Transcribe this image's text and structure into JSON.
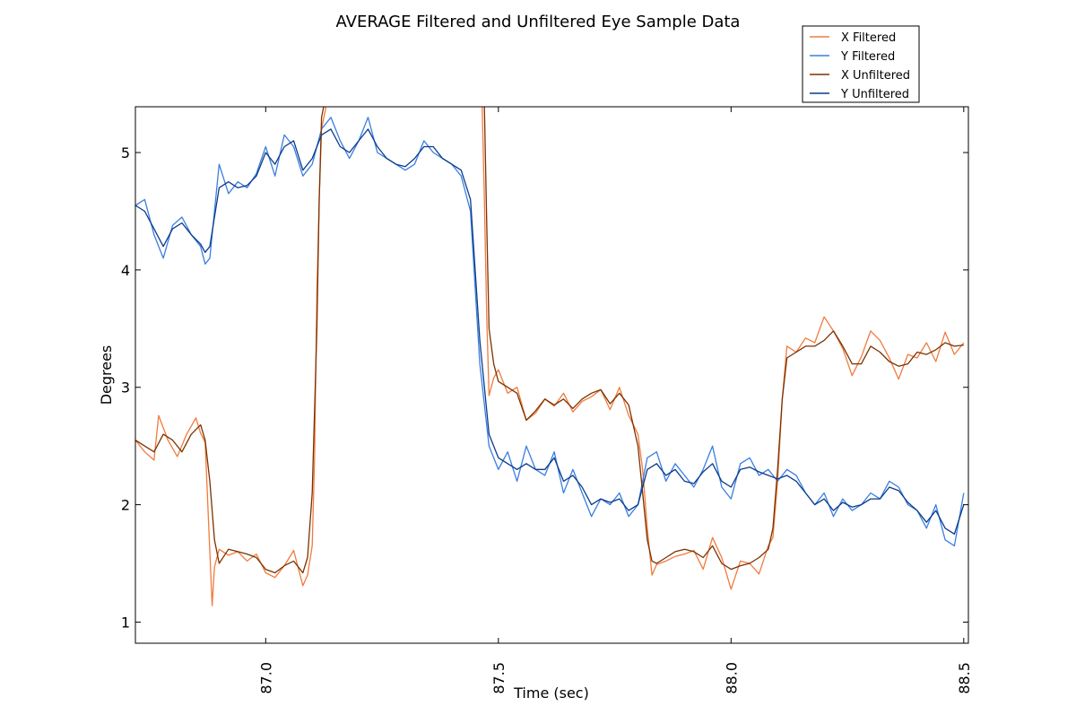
{
  "chart_data": {
    "type": "line",
    "title": "AVERAGE Filtered and Unfiltered Eye Sample Data",
    "xlabel": "Time (sec)",
    "ylabel": "Degrees",
    "xlim": [
      86.72,
      88.51
    ],
    "ylim": [
      0.82,
      5.39
    ],
    "xticks": [
      "87.0",
      "87.5",
      "88.0",
      "88.5"
    ],
    "xtick_values": [
      87.0,
      87.5,
      88.0,
      88.5
    ],
    "yticks": [
      "1",
      "2",
      "3",
      "4",
      "5"
    ],
    "ytick_values": [
      1,
      2,
      3,
      4,
      5
    ],
    "grid": false,
    "legend_position": "top-right",
    "series": [
      {
        "name": "X Filtered",
        "color": "#f07b3f",
        "x": [
          86.72,
          86.74,
          86.76,
          86.77,
          86.79,
          86.81,
          86.83,
          86.85,
          86.86,
          86.87,
          86.88,
          86.885,
          86.89,
          86.9,
          86.92,
          86.94,
          86.96,
          86.98,
          87.0,
          87.02,
          87.04,
          87.06,
          87.08,
          87.09,
          87.1,
          87.105,
          87.11,
          87.115,
          87.12,
          87.13
        ],
        "values": [
          2.55,
          2.45,
          2.38,
          2.76,
          2.55,
          2.41,
          2.6,
          2.74,
          2.61,
          2.53,
          1.6,
          1.14,
          1.47,
          1.62,
          1.57,
          1.6,
          1.52,
          1.58,
          1.42,
          1.38,
          1.48,
          1.61,
          1.31,
          1.4,
          1.65,
          2.4,
          3.8,
          4.6,
          5.2,
          5.4
        ]
      },
      {
        "name": "X Filtered",
        "color": "#f07b3f",
        "x": [
          87.465,
          87.47,
          87.475,
          87.48,
          87.49,
          87.5,
          87.52,
          87.54,
          87.56,
          87.58,
          87.6,
          87.62,
          87.64,
          87.66,
          87.68,
          87.7,
          87.72,
          87.74,
          87.76,
          87.78,
          87.8,
          87.81,
          87.82,
          87.83,
          87.84,
          87.86,
          87.88,
          87.9,
          87.92,
          87.94,
          87.96,
          87.98,
          88.0,
          88.02,
          88.04,
          88.06,
          88.08,
          88.09,
          88.1,
          88.11,
          88.12,
          88.14,
          88.16,
          88.18,
          88.2,
          88.22,
          88.24,
          88.26,
          88.28,
          88.3,
          88.32,
          88.34,
          88.36,
          88.38,
          88.4,
          88.42,
          88.44,
          88.46,
          88.48,
          88.5
        ],
        "values": [
          5.4,
          4.6,
          3.6,
          2.93,
          3.08,
          3.15,
          2.95,
          3.0,
          2.72,
          2.78,
          2.9,
          2.84,
          2.95,
          2.79,
          2.88,
          2.92,
          2.98,
          2.81,
          3.0,
          2.76,
          2.6,
          2.3,
          1.8,
          1.4,
          1.49,
          1.52,
          1.56,
          1.58,
          1.61,
          1.45,
          1.72,
          1.55,
          1.28,
          1.52,
          1.5,
          1.41,
          1.65,
          1.72,
          2.2,
          2.9,
          3.35,
          3.3,
          3.42,
          3.38,
          3.6,
          3.48,
          3.33,
          3.1,
          3.26,
          3.48,
          3.4,
          3.25,
          3.07,
          3.28,
          3.25,
          3.38,
          3.22,
          3.47,
          3.28,
          3.38
        ]
      },
      {
        "name": "Y Filtered",
        "color": "#3b7fe0",
        "x": [
          86.72,
          86.74,
          86.76,
          86.78,
          86.8,
          86.82,
          86.84,
          86.86,
          86.87,
          86.88,
          86.9,
          86.92,
          86.94,
          86.96,
          86.98,
          87.0,
          87.02,
          87.04,
          87.06,
          87.08,
          87.1,
          87.12,
          87.14,
          87.16,
          87.18,
          87.2,
          87.22,
          87.24,
          87.26,
          87.28,
          87.3,
          87.32,
          87.34,
          87.36,
          87.38,
          87.4,
          87.42,
          87.44,
          87.46,
          87.48,
          87.5,
          87.52,
          87.54,
          87.56,
          87.58,
          87.6,
          87.62,
          87.64,
          87.66,
          87.68,
          87.7,
          87.72,
          87.74,
          87.76,
          87.78,
          87.8,
          87.82,
          87.84,
          87.86,
          87.88,
          87.9,
          87.92,
          87.94,
          87.96,
          87.98,
          88.0,
          88.02,
          88.04,
          88.06,
          88.08,
          88.1,
          88.12,
          88.14,
          88.16,
          88.18,
          88.2,
          88.22,
          88.24,
          88.26,
          88.28,
          88.3,
          88.32,
          88.34,
          88.36,
          88.38,
          88.4,
          88.42,
          88.44,
          88.46,
          88.48,
          88.5
        ],
        "values": [
          4.55,
          4.6,
          4.3,
          4.1,
          4.38,
          4.45,
          4.3,
          4.2,
          4.05,
          4.1,
          4.9,
          4.65,
          4.75,
          4.7,
          4.82,
          5.05,
          4.8,
          5.15,
          5.05,
          4.8,
          4.9,
          5.2,
          5.3,
          5.1,
          4.95,
          5.1,
          5.3,
          5.0,
          4.95,
          4.9,
          4.85,
          4.9,
          5.1,
          5.0,
          4.95,
          4.9,
          4.8,
          4.5,
          3.2,
          2.5,
          2.3,
          2.45,
          2.2,
          2.5,
          2.3,
          2.25,
          2.45,
          2.1,
          2.3,
          2.1,
          1.9,
          2.05,
          2.0,
          2.1,
          1.9,
          2.0,
          2.4,
          2.45,
          2.2,
          2.35,
          2.25,
          2.15,
          2.3,
          2.5,
          2.15,
          2.05,
          2.35,
          2.4,
          2.25,
          2.3,
          2.2,
          2.3,
          2.25,
          2.1,
          2.0,
          2.1,
          1.9,
          2.05,
          1.95,
          2.0,
          2.1,
          2.05,
          2.2,
          2.15,
          2.0,
          1.95,
          1.8,
          2.0,
          1.7,
          1.65,
          2.1
        ]
      },
      {
        "name": "X Unfiltered",
        "color": "#7b3200",
        "x": [
          86.72,
          86.74,
          86.76,
          86.78,
          86.8,
          86.82,
          86.84,
          86.86,
          86.87,
          86.88,
          86.89,
          86.9,
          86.92,
          86.94,
          86.96,
          86.98,
          87.0,
          87.02,
          87.04,
          87.06,
          87.08,
          87.09,
          87.1,
          87.11,
          87.115,
          87.12,
          87.125
        ],
        "values": [
          2.55,
          2.5,
          2.45,
          2.6,
          2.55,
          2.45,
          2.6,
          2.68,
          2.55,
          2.2,
          1.7,
          1.5,
          1.62,
          1.6,
          1.58,
          1.55,
          1.45,
          1.42,
          1.48,
          1.52,
          1.42,
          1.55,
          2.1,
          3.5,
          4.6,
          5.3,
          5.4
        ]
      },
      {
        "name": "X Unfiltered",
        "color": "#7b3200",
        "x": [
          87.47,
          87.475,
          87.48,
          87.49,
          87.5,
          87.52,
          87.54,
          87.56,
          87.58,
          87.6,
          87.62,
          87.64,
          87.66,
          87.68,
          87.7,
          87.72,
          87.74,
          87.76,
          87.78,
          87.8,
          87.81,
          87.82,
          87.83,
          87.84,
          87.86,
          87.88,
          87.9,
          87.92,
          87.94,
          87.96,
          87.98,
          88.0,
          88.02,
          88.04,
          88.06,
          88.08,
          88.09,
          88.1,
          88.11,
          88.12,
          88.14,
          88.16,
          88.18,
          88.2,
          88.22,
          88.24,
          88.26,
          88.28,
          88.3,
          88.32,
          88.34,
          88.36,
          88.38,
          88.4,
          88.42,
          88.44,
          88.46,
          88.48,
          88.5
        ],
        "values": [
          5.4,
          4.4,
          3.5,
          3.2,
          3.05,
          3.0,
          2.95,
          2.72,
          2.8,
          2.9,
          2.85,
          2.9,
          2.82,
          2.9,
          2.95,
          2.98,
          2.86,
          2.95,
          2.85,
          2.5,
          2.1,
          1.7,
          1.52,
          1.5,
          1.55,
          1.6,
          1.62,
          1.6,
          1.55,
          1.65,
          1.5,
          1.45,
          1.48,
          1.5,
          1.55,
          1.62,
          1.8,
          2.3,
          2.9,
          3.25,
          3.3,
          3.35,
          3.35,
          3.4,
          3.48,
          3.35,
          3.2,
          3.2,
          3.35,
          3.3,
          3.22,
          3.18,
          3.2,
          3.3,
          3.28,
          3.32,
          3.38,
          3.35,
          3.36
        ]
      },
      {
        "name": "Y Unfiltered",
        "color": "#0b3a8a",
        "x": [
          86.72,
          86.74,
          86.76,
          86.78,
          86.8,
          86.82,
          86.84,
          86.86,
          86.87,
          86.88,
          86.9,
          86.92,
          86.94,
          86.96,
          86.98,
          87.0,
          87.02,
          87.04,
          87.06,
          87.08,
          87.1,
          87.12,
          87.14,
          87.16,
          87.18,
          87.2,
          87.22,
          87.24,
          87.26,
          87.28,
          87.3,
          87.32,
          87.34,
          87.36,
          87.38,
          87.4,
          87.42,
          87.44,
          87.46,
          87.48,
          87.5,
          87.52,
          87.54,
          87.56,
          87.58,
          87.6,
          87.62,
          87.64,
          87.66,
          87.68,
          87.7,
          87.72,
          87.74,
          87.76,
          87.78,
          87.8,
          87.82,
          87.84,
          87.86,
          87.88,
          87.9,
          87.92,
          87.94,
          87.96,
          87.98,
          88.0,
          88.02,
          88.04,
          88.06,
          88.08,
          88.1,
          88.12,
          88.14,
          88.16,
          88.18,
          88.2,
          88.22,
          88.24,
          88.26,
          88.28,
          88.3,
          88.32,
          88.34,
          88.36,
          88.38,
          88.4,
          88.42,
          88.44,
          88.46,
          88.48,
          88.5
        ],
        "values": [
          4.55,
          4.5,
          4.35,
          4.2,
          4.35,
          4.4,
          4.3,
          4.22,
          4.15,
          4.2,
          4.7,
          4.75,
          4.7,
          4.72,
          4.8,
          5.0,
          4.9,
          5.05,
          5.1,
          4.85,
          4.95,
          5.15,
          5.2,
          5.05,
          5.0,
          5.1,
          5.2,
          5.05,
          4.95,
          4.9,
          4.88,
          4.95,
          5.05,
          5.05,
          4.95,
          4.9,
          4.85,
          4.6,
          3.4,
          2.6,
          2.4,
          2.35,
          2.3,
          2.35,
          2.3,
          2.3,
          2.4,
          2.2,
          2.25,
          2.15,
          2.0,
          2.05,
          2.02,
          2.05,
          1.95,
          2.0,
          2.3,
          2.35,
          2.25,
          2.3,
          2.2,
          2.18,
          2.28,
          2.35,
          2.2,
          2.15,
          2.3,
          2.32,
          2.28,
          2.25,
          2.22,
          2.25,
          2.2,
          2.1,
          2.0,
          2.05,
          1.95,
          2.02,
          1.98,
          2.0,
          2.05,
          2.05,
          2.15,
          2.12,
          2.02,
          1.95,
          1.85,
          1.95,
          1.8,
          1.75,
          2.0
        ]
      }
    ],
    "legend": [
      {
        "label": "X Filtered",
        "color": "#f07b3f"
      },
      {
        "label": "Y Filtered",
        "color": "#3b7fe0"
      },
      {
        "label": "X Unfiltered",
        "color": "#7b3200"
      },
      {
        "label": "Y Unfiltered",
        "color": "#0b3a8a"
      }
    ]
  }
}
